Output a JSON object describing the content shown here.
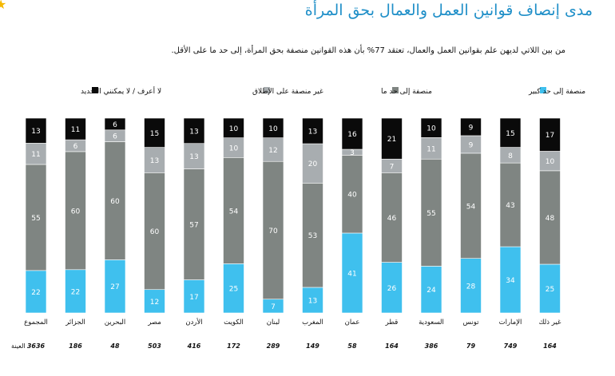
{
  "header": {
    "title": "مدى إنصاف قوانين العمل والعمال بحق المرأة",
    "subtitle": "من بين اللاتي لديهن علم بقوانين العمل والعمال، تعتقد 77% بأن هذه القوانين منصفة بحق المرأة، إلى حد ما على الأقل."
  },
  "colors": {
    "very_fair": "#3fc0ee",
    "somewhat_fair": "#7f8582",
    "not_fair": "#a8adb0",
    "dont_know": "#0a0a0a"
  },
  "chart_data": {
    "type": "bar",
    "stacked": true,
    "percent": true,
    "categories": [
      "المجموع",
      "الجزائر",
      "البحرين",
      "مصر",
      "الأردن",
      "الكويت",
      "لبنان",
      "المغرب",
      "عمان",
      "قطر",
      "السعودية",
      "تونس",
      "الإمارات",
      "غير ذلك"
    ],
    "sample_label": "العينة",
    "sample_sizes": [
      "3636",
      "186",
      "48",
      "503",
      "416",
      "172",
      "289",
      "149",
      "58",
      "164",
      "386",
      "79",
      "749",
      "164"
    ],
    "legend_labels": [
      "منصفة إلى حد كبير",
      "منصفة إلى حد ما",
      "غير منصفة على الإطلاق",
      "لا أعرف / لا يمكنني التحديد"
    ],
    "series": [
      {
        "name": "منصفة إلى حد كبير",
        "color": "#3fc0ee",
        "values": [
          22,
          22,
          27,
          12,
          17,
          25,
          7,
          13,
          41,
          26,
          24,
          28,
          34,
          25
        ]
      },
      {
        "name": "منصفة إلى حد ما",
        "color": "#7f8582",
        "values": [
          55,
          60,
          60,
          60,
          57,
          54,
          70,
          53,
          40,
          46,
          55,
          54,
          43,
          48
        ]
      },
      {
        "name": "غير منصفة على الإطلاق",
        "color": "#a8adb0",
        "values": [
          11,
          6,
          6,
          13,
          13,
          10,
          12,
          20,
          3,
          7,
          11,
          9,
          8,
          10
        ]
      },
      {
        "name": "لا أعرف / لا يمكنني التحديد",
        "color": "#0a0a0a",
        "values": [
          13,
          11,
          6,
          15,
          13,
          10,
          10,
          13,
          16,
          21,
          10,
          9,
          15,
          17
        ]
      }
    ]
  }
}
